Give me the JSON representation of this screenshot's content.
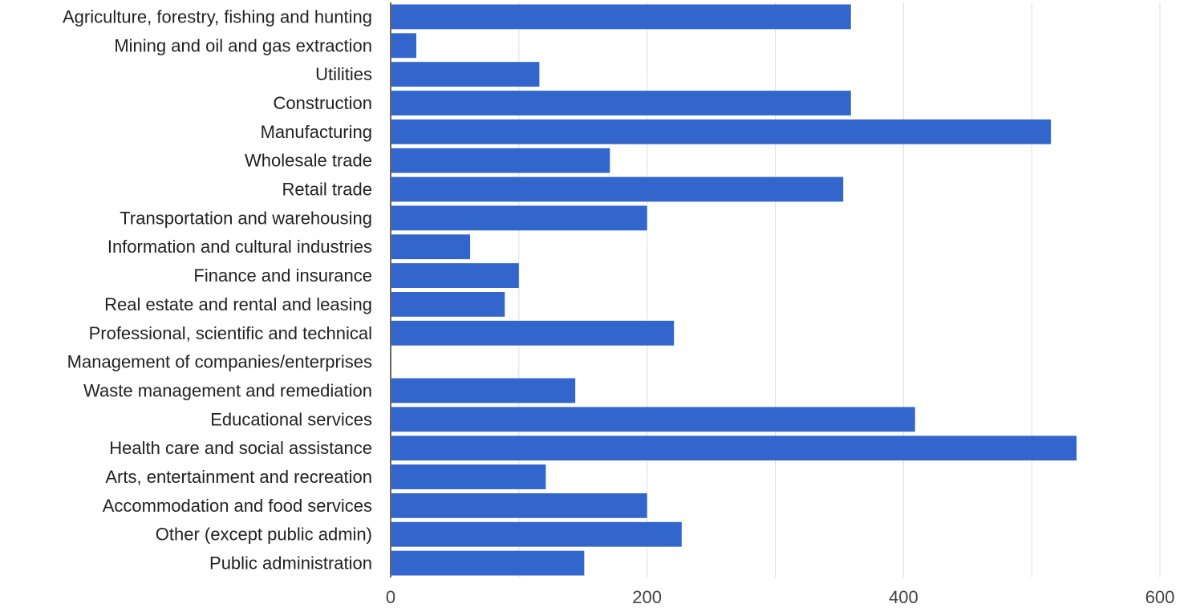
{
  "chart_data": {
    "type": "bar",
    "orientation": "horizontal",
    "categories": [
      "Agriculture, forestry, fishing and hunting",
      "Mining and oil and gas extraction",
      "Utilities",
      "Construction",
      "Manufacturing",
      "Wholesale trade",
      "Retail trade",
      "Transportation and warehousing",
      "Information and cultural industries",
      "Finance and insurance",
      "Real estate and rental and leasing",
      "Professional, scientific and technical",
      "Management of companies/enterprises",
      "Waste management and remediation",
      "Educational services",
      "Health care and social assistance",
      "Arts, entertainment and recreation",
      "Accommodation and food services",
      "Other (except public admin)",
      "Public administration"
    ],
    "values": [
      359,
      20,
      116,
      359,
      515,
      171,
      353,
      200,
      62,
      100,
      89,
      221,
      0,
      144,
      409,
      535,
      121,
      200,
      227,
      151
    ],
    "xlim": [
      0,
      600
    ],
    "xticks": [
      "0",
      "200",
      "400",
      "600"
    ],
    "grid": true,
    "bar_color": "#3366cc",
    "grid_color": "#dddddd",
    "axis_color": "#333333"
  }
}
